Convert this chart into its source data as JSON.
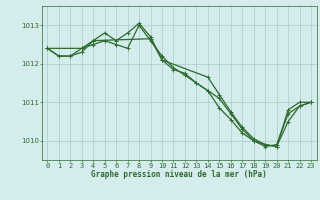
{
  "series": [
    {
      "x": [
        0,
        1,
        2,
        3,
        4,
        5,
        6,
        7,
        8,
        9,
        10,
        11,
        12,
        13,
        14,
        15,
        16,
        17,
        18,
        19,
        20,
        21,
        22,
        23
      ],
      "y": [
        1012.4,
        1012.2,
        1012.2,
        1012.4,
        1012.5,
        1012.6,
        1012.5,
        1012.4,
        1013.0,
        1012.6,
        1012.2,
        1011.9,
        1011.7,
        1011.5,
        1011.3,
        1011.1,
        1010.7,
        1010.3,
        1010.0,
        1009.9,
        1009.85,
        1010.8,
        1011.0,
        1011.0
      ]
    },
    {
      "x": [
        0,
        1,
        2,
        3,
        4,
        5,
        6,
        7,
        8,
        9,
        10,
        11,
        12,
        13,
        14,
        15,
        16,
        17,
        18,
        19,
        20,
        21,
        22,
        23
      ],
      "y": [
        1012.4,
        1012.2,
        1012.2,
        1012.3,
        1012.6,
        1012.8,
        1012.6,
        1012.8,
        1013.05,
        1012.7,
        1012.1,
        1011.85,
        1011.75,
        1011.5,
        1011.3,
        1010.85,
        1010.55,
        1010.2,
        1010.0,
        1009.85,
        1009.9,
        1010.7,
        1010.9,
        1011.0
      ]
    },
    {
      "x": [
        0,
        3,
        4,
        9,
        10,
        14,
        15,
        16,
        17,
        18,
        19,
        20,
        21,
        22,
        23
      ],
      "y": [
        1012.4,
        1012.4,
        1012.6,
        1012.65,
        1012.1,
        1011.65,
        1011.2,
        1010.75,
        1010.35,
        1010.05,
        1009.9,
        1009.85,
        1010.5,
        1010.9,
        1011.0
      ]
    }
  ],
  "xlim": [
    -0.5,
    23.5
  ],
  "ylim": [
    1009.5,
    1013.5
  ],
  "yticks": [
    1010,
    1011,
    1012,
    1013
  ],
  "xticks": [
    0,
    1,
    2,
    3,
    4,
    5,
    6,
    7,
    8,
    9,
    10,
    11,
    12,
    13,
    14,
    15,
    16,
    17,
    18,
    19,
    20,
    21,
    22,
    23
  ],
  "xlabel": "Graphe pression niveau de la mer (hPa)",
  "background_color": "#d4ecec",
  "grid_color": "#a8cccc",
  "line_color": "#2d6a2d",
  "label_fontsize": 5.5,
  "tick_fontsize": 5.0,
  "linewidth": 0.9,
  "markersize": 2.5,
  "markeredgewidth": 0.7
}
